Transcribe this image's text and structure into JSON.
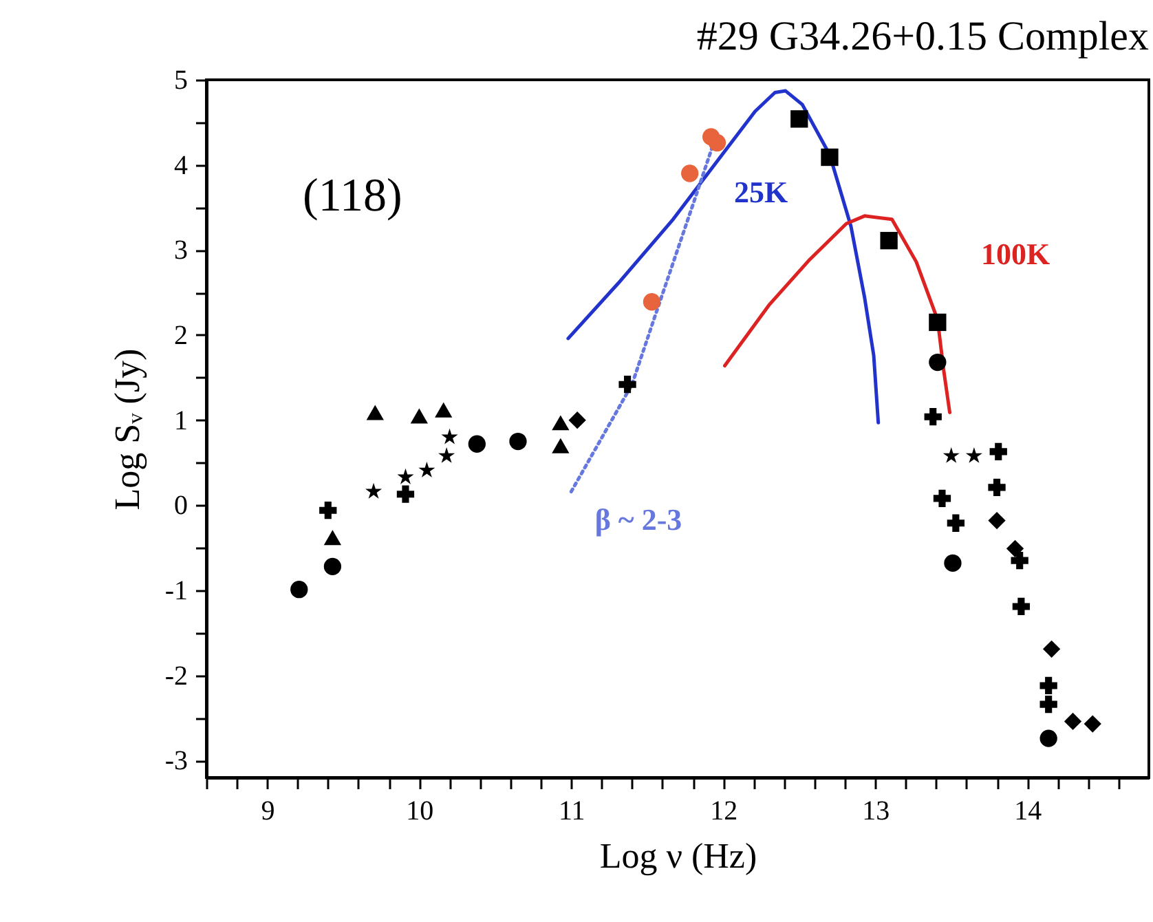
{
  "chart_data": {
    "type": "scatter",
    "title": "#29   G34.26+0.15  Complex",
    "xlabel": "Log ν (Hz)",
    "ylabel": "Log Sᵥ (Jy)",
    "xlim": [
      8.6,
      14.8
    ],
    "ylim": [
      -3.2,
      5
    ],
    "xticks": [
      {
        "value": 8.6,
        "label": null
      },
      {
        "value": 8.8,
        "label": null
      },
      9,
      {
        "value": 9.2,
        "label": null
      },
      {
        "value": 9.4,
        "label": null
      },
      {
        "value": 9.6,
        "label": null
      },
      {
        "value": 9.8,
        "label": null
      },
      10,
      {
        "value": 10.2,
        "label": null
      },
      {
        "value": 10.4,
        "label": null
      },
      {
        "value": 10.6,
        "label": null
      },
      {
        "value": 10.8,
        "label": null
      },
      11,
      {
        "value": 11.2,
        "label": null
      },
      {
        "value": 11.4,
        "label": null
      },
      {
        "value": 11.6,
        "label": null
      },
      {
        "value": 11.8,
        "label": null
      },
      12,
      {
        "value": 12.2,
        "label": null
      },
      {
        "value": 12.4,
        "label": null
      },
      {
        "value": 12.6,
        "label": null
      },
      {
        "value": 12.8,
        "label": null
      },
      13,
      {
        "value": 13.2,
        "label": null
      },
      {
        "value": 13.4,
        "label": null
      },
      {
        "value": 13.6,
        "label": null
      },
      {
        "value": 13.8,
        "label": null
      },
      14,
      {
        "value": 14.2,
        "label": null
      },
      {
        "value": 14.4,
        "label": null
      },
      {
        "value": 14.6,
        "label": null
      }
    ],
    "yticks": [
      -3,
      {
        "value": -2.5,
        "label": null
      },
      -2,
      {
        "value": -1.5,
        "label": null
      },
      -1,
      {
        "value": -0.5,
        "label": null
      },
      0,
      {
        "value": 0.5,
        "label": null
      },
      1,
      {
        "value": 1.5,
        "label": null
      },
      2,
      {
        "value": 2.5,
        "label": null
      },
      3,
      {
        "value": 3.5,
        "label": null
      },
      4,
      {
        "value": 4.5,
        "label": null
      },
      5
    ],
    "grid": false,
    "series": [
      {
        "marker": "circle",
        "color": "#000000",
        "x": [
          9.21,
          9.43,
          10.38,
          10.65,
          13.41,
          13.51,
          14.14
        ],
        "values": [
          -0.99,
          -0.72,
          0.72,
          0.75,
          1.68,
          -0.68,
          -2.74
        ]
      },
      {
        "marker": "triangle",
        "color": "#000000",
        "x": [
          9.43,
          9.71,
          10.0,
          10.16,
          10.93,
          10.93
        ],
        "values": [
          -0.38,
          1.09,
          1.05,
          1.12,
          0.97,
          0.7
        ]
      },
      {
        "marker": "star",
        "color": "#000000",
        "x": [
          9.7,
          9.91,
          10.05,
          10.18,
          10.2,
          13.5,
          13.65
        ],
        "values": [
          0.16,
          0.33,
          0.41,
          0.58,
          0.8,
          0.58,
          0.58
        ]
      },
      {
        "marker": "cross",
        "color": "#000000",
        "x": [
          9.4,
          9.91,
          11.37,
          13.38,
          13.44,
          13.53,
          13.81,
          13.8,
          13.95,
          13.96,
          14.14,
          14.14
        ],
        "values": [
          -0.06,
          0.13,
          1.42,
          1.04,
          0.08,
          -0.21,
          0.63,
          0.21,
          -0.65,
          -1.19,
          -2.12,
          -2.34
        ]
      },
      {
        "marker": "diamond",
        "color": "#000000",
        "x": [
          11.04,
          13.8,
          13.92,
          14.16,
          14.3,
          14.43
        ],
        "values": [
          1.0,
          -0.18,
          -0.51,
          -1.69,
          -2.54,
          -2.57
        ]
      },
      {
        "marker": "square",
        "color": "#000000",
        "x": [
          12.5,
          12.7,
          13.09,
          13.41
        ],
        "values": [
          4.54,
          4.09,
          3.11,
          2.15
        ]
      },
      {
        "marker": "circle",
        "color": "#e8643c",
        "x": [
          11.53,
          11.78,
          11.92,
          11.96
        ],
        "values": [
          2.39,
          3.9,
          4.33,
          4.26
        ]
      },
      {
        "type": "line",
        "name": "25K",
        "color": "#2233cc",
        "x": [
          10.98,
          11.31,
          11.67,
          11.98,
          12.21,
          12.34,
          12.41,
          12.52,
          12.7,
          12.84,
          12.93,
          12.99,
          13.02
        ],
        "values": [
          1.96,
          2.61,
          3.36,
          4.09,
          4.63,
          4.85,
          4.87,
          4.71,
          4.12,
          3.28,
          2.44,
          1.76,
          0.97
        ]
      },
      {
        "type": "line",
        "name": "100K",
        "color": "#dd2222",
        "x": [
          12.01,
          12.3,
          12.57,
          12.81,
          12.93,
          13.11,
          13.27,
          13.41,
          13.45,
          13.49
        ],
        "values": [
          1.64,
          2.35,
          2.89,
          3.31,
          3.4,
          3.36,
          2.86,
          2.18,
          1.59,
          1.09
        ]
      },
      {
        "type": "line",
        "name": "β ~ 2-3",
        "line_style": "dotted",
        "color": "#6677dd",
        "x": [
          11.0,
          11.4,
          11.56,
          11.8,
          11.96
        ],
        "values": [
          0.16,
          1.42,
          2.27,
          3.53,
          4.38
        ]
      }
    ],
    "annotations": [
      "(118)"
    ]
  }
}
